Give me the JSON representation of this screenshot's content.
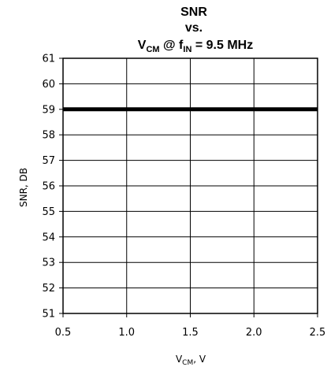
{
  "chart_data": {
    "type": "line",
    "title": {
      "line1": "SNR",
      "line2": "vs.",
      "line3_main": "V",
      "line3_sub": "CM",
      "line3_mid": " @ f",
      "line3_sub2": "IN",
      "line3_end": " = 9.5 MHz"
    },
    "xlabel": {
      "main": "V",
      "sub": "CM",
      "end": ", V"
    },
    "ylabel": "SNR, DB",
    "xlim": [
      0.5,
      2.5
    ],
    "ylim": [
      51,
      61
    ],
    "xticks": [
      "0.5",
      "1.0",
      "1.5",
      "2.0",
      "2.5"
    ],
    "yticks": [
      "51",
      "52",
      "53",
      "54",
      "55",
      "56",
      "57",
      "58",
      "59",
      "60",
      "61"
    ],
    "grid": true,
    "series": [
      {
        "x": [
          0.5,
          2.5
        ],
        "y": [
          59,
          59
        ]
      }
    ]
  }
}
